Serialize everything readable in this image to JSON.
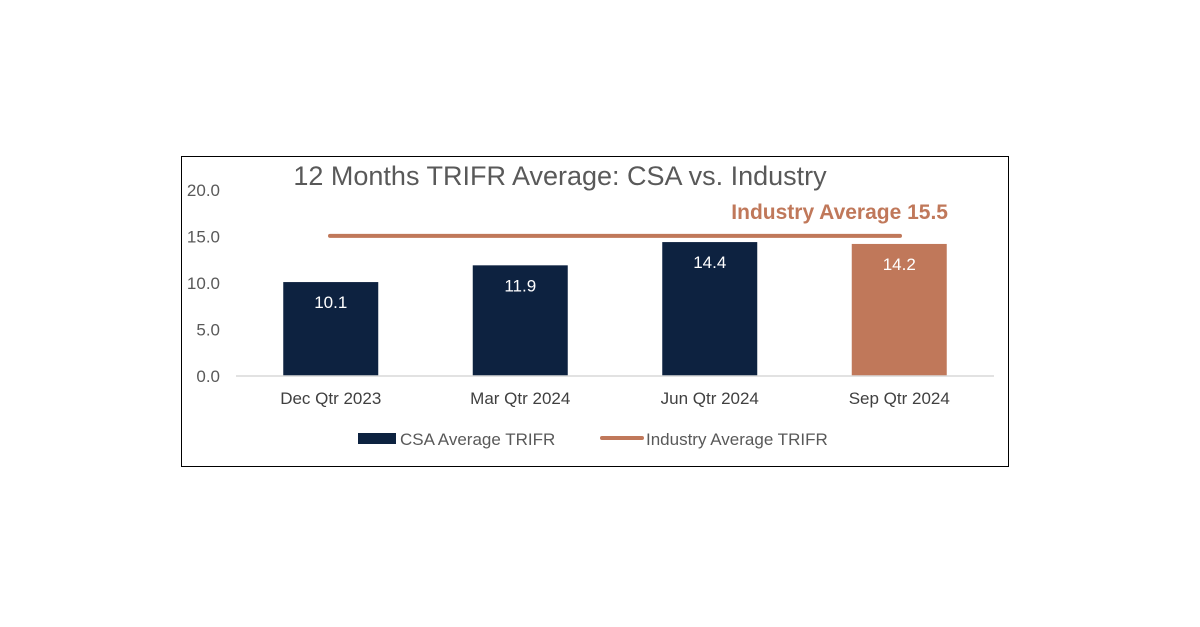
{
  "chart_data": {
    "type": "bar",
    "title": "12 Months TRIFR Average: CSA vs. Industry",
    "categories": [
      "Dec Qtr 2023",
      "Mar Qtr 2024",
      "Jun Qtr 2024",
      "Sep Qtr 2024"
    ],
    "series": [
      {
        "name": "CSA Average TRIFR",
        "type": "bar",
        "values": [
          10.1,
          11.9,
          14.4,
          14.2
        ],
        "labels": [
          "10.1",
          "11.9",
          "14.4",
          "14.2"
        ],
        "color": "#0d2240",
        "highlight_color": "#c0785a",
        "highlight_index": 3
      },
      {
        "name": "Industry Average TRIFR",
        "type": "line",
        "value": 15.5,
        "color": "#c0785a"
      }
    ],
    "annotation": {
      "text": "Industry Average 15.5",
      "color": "#c0785a"
    },
    "ylim": [
      0,
      20
    ],
    "yticks": [
      "0.0",
      "5.0",
      "10.0",
      "15.0",
      "20.0"
    ],
    "ytick_values": [
      0,
      5,
      10,
      15,
      20
    ],
    "grid": false,
    "legend_position": "bottom"
  }
}
